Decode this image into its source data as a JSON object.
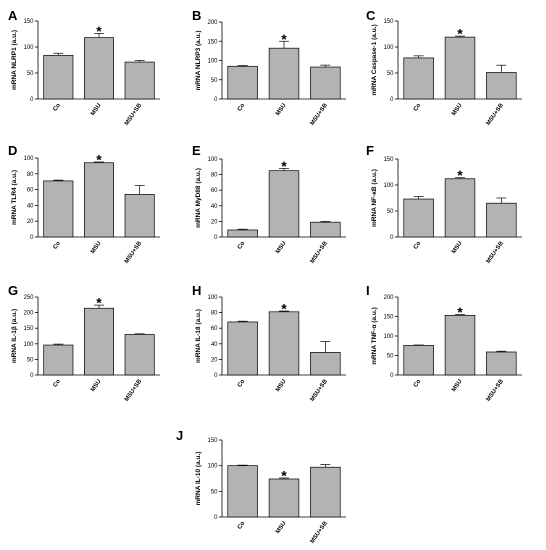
{
  "chart_data": [
    {
      "type": "bar",
      "letter": "A",
      "ylabel": "mRNA NLRP1 (a.u.)",
      "categories": [
        "Co",
        "MSU",
        "MSU+SB"
      ],
      "values": [
        84,
        118,
        71
      ],
      "errors": [
        4,
        8,
        3
      ],
      "significant": [
        false,
        true,
        false
      ],
      "ylim": [
        0,
        150
      ],
      "yticks": [
        0,
        50,
        100,
        150
      ]
    },
    {
      "type": "bar",
      "letter": "B",
      "ylabel": "mRNA NLRP3 (a.u.)",
      "categories": [
        "Co",
        "MSU",
        "MSU+SB"
      ],
      "values": [
        85,
        132,
        83
      ],
      "errors": [
        2,
        18,
        5
      ],
      "significant": [
        false,
        true,
        false
      ],
      "ylim": [
        0,
        200
      ],
      "yticks": [
        0,
        50,
        100,
        150,
        200
      ]
    },
    {
      "type": "bar",
      "letter": "C",
      "ylabel": "mRNA Caspase-1 (a.u.)",
      "categories": [
        "Co",
        "MSU",
        "MSU+SB"
      ],
      "values": [
        79,
        119,
        51
      ],
      "errors": [
        4,
        2,
        14
      ],
      "significant": [
        false,
        true,
        false
      ],
      "ylim": [
        0,
        150
      ],
      "yticks": [
        0,
        50,
        100,
        150
      ]
    },
    {
      "type": "bar",
      "letter": "D",
      "ylabel": "mRNA TLR4 (a.u.)",
      "categories": [
        "Co",
        "MSU",
        "MSU+SB"
      ],
      "values": [
        71,
        94,
        54
      ],
      "errors": [
        1,
        1,
        11
      ],
      "significant": [
        false,
        true,
        false
      ],
      "ylim": [
        0,
        100
      ],
      "yticks": [
        0,
        20,
        40,
        60,
        80,
        100
      ]
    },
    {
      "type": "bar",
      "letter": "E",
      "ylabel": "mRNA MyD88 (a.u.)",
      "categories": [
        "Co",
        "MSU",
        "MSU+SB"
      ],
      "values": [
        9,
        85,
        19
      ],
      "errors": [
        1,
        3,
        1
      ],
      "significant": [
        false,
        true,
        false
      ],
      "ylim": [
        0,
        100
      ],
      "yticks": [
        0,
        20,
        40,
        60,
        80,
        100
      ]
    },
    {
      "type": "bar",
      "letter": "F",
      "ylabel": "mRNA NF-κB (a.u.)",
      "categories": [
        "Co",
        "MSU",
        "MSU+SB"
      ],
      "values": [
        73,
        112,
        65
      ],
      "errors": [
        5,
        2,
        10
      ],
      "significant": [
        false,
        true,
        false
      ],
      "ylim": [
        0,
        150
      ],
      "yticks": [
        0,
        50,
        100,
        150
      ]
    },
    {
      "type": "bar",
      "letter": "G",
      "ylabel": "mRNA IL-1β (a.u.)",
      "categories": [
        "Co",
        "MSU",
        "MSU+SB"
      ],
      "values": [
        96,
        214,
        130
      ],
      "errors": [
        3,
        10,
        2
      ],
      "significant": [
        false,
        true,
        false
      ],
      "ylim": [
        0,
        250
      ],
      "yticks": [
        0,
        50,
        100,
        150,
        200,
        250
      ]
    },
    {
      "type": "bar",
      "letter": "H",
      "ylabel": "mRNA IL-18 (a.u.)",
      "categories": [
        "Co",
        "MSU",
        "MSU+SB"
      ],
      "values": [
        68,
        81,
        29
      ],
      "errors": [
        1,
        1,
        14
      ],
      "significant": [
        false,
        true,
        false
      ],
      "ylim": [
        0,
        100
      ],
      "yticks": [
        0,
        20,
        40,
        60,
        80,
        100
      ]
    },
    {
      "type": "bar",
      "letter": "I",
      "ylabel": "mRNA TNF-α (a.u.)",
      "categories": [
        "Co",
        "MSU",
        "MSU+SB"
      ],
      "values": [
        76,
        153,
        59
      ],
      "errors": [
        1,
        2,
        2
      ],
      "significant": [
        false,
        true,
        false
      ],
      "ylim": [
        0,
        200
      ],
      "yticks": [
        0,
        50,
        100,
        150,
        200
      ]
    },
    {
      "type": "bar",
      "letter": "J",
      "ylabel": "mRNA IL-10 (a.u.)",
      "categories": [
        "Co",
        "MSU",
        "MSU+SB"
      ],
      "values": [
        100,
        74,
        97
      ],
      "errors": [
        1,
        2,
        5
      ],
      "significant": [
        false,
        true,
        false
      ],
      "ylim": [
        0,
        150
      ],
      "yticks": [
        0,
        50,
        100,
        150
      ]
    }
  ],
  "significance_marker": "*",
  "colors": {
    "bar_fill": "#b3b3b3",
    "bar_stroke": "#000000"
  }
}
